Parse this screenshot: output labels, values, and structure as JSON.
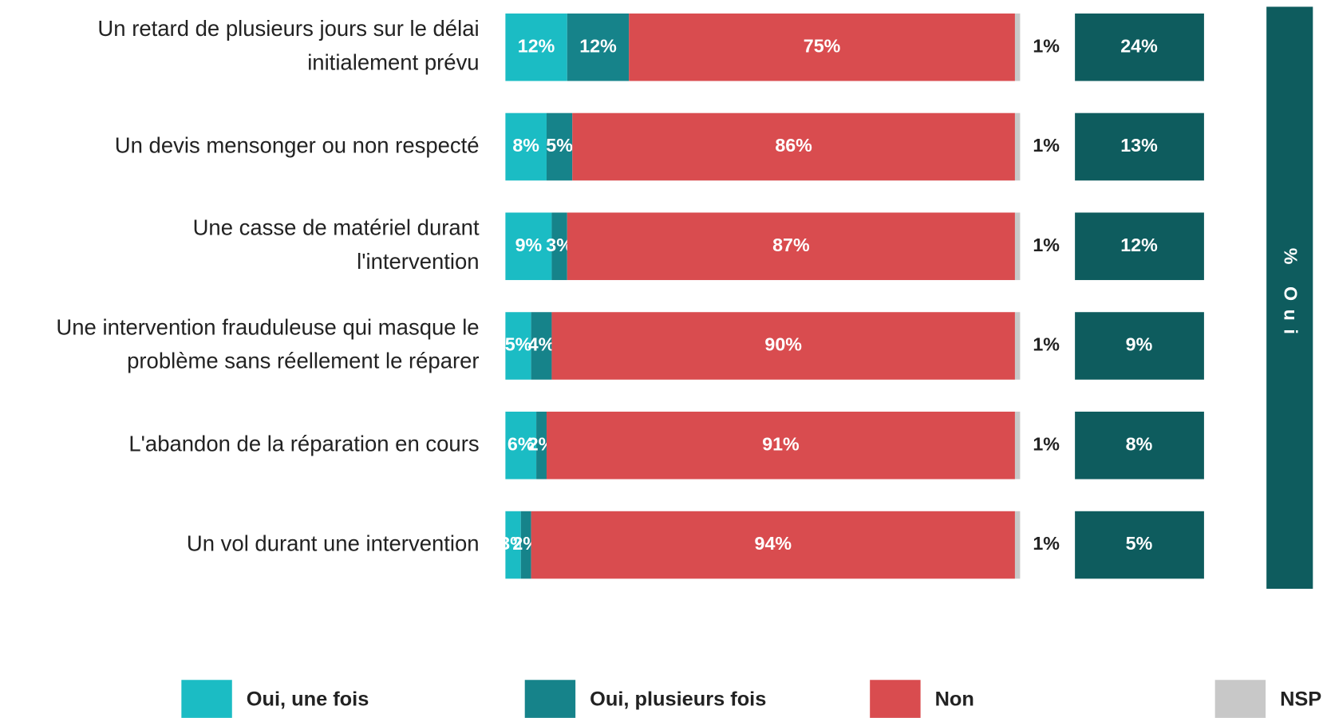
{
  "chart_data": {
    "type": "stacked-bar",
    "orientation": "horizontal",
    "categories": [
      "Un retard de plusieurs jours sur le délai initialement prévu",
      "Un devis mensonger ou non respecté",
      "Une casse de matériel durant l'intervention",
      "Une intervention frauduleuse qui masque le problème sans réellement le réparer",
      "L'abandon de la réparation en cours",
      "Un vol durant une intervention"
    ],
    "xlim": [
      0,
      100
    ],
    "series": [
      {
        "name": "Oui, une fois",
        "color": "#1bbcc4",
        "values": [
          12,
          8,
          9,
          5,
          6,
          3
        ],
        "value_labels": [
          "12%",
          "8%",
          "9%",
          "5%",
          "6%",
          "3%"
        ]
      },
      {
        "name": "Oui, plusieurs fois",
        "color": "#16838a",
        "values": [
          12,
          5,
          3,
          4,
          2,
          2
        ],
        "value_labels": [
          "12%",
          "5%",
          "3%",
          "4%",
          "2%",
          "2%"
        ]
      },
      {
        "name": "Non",
        "color": "#d94c4f",
        "values": [
          75,
          86,
          87,
          90,
          91,
          94
        ],
        "value_labels": [
          "75%",
          "86%",
          "87%",
          "90%",
          "91%",
          "94%"
        ]
      },
      {
        "name": "NSP",
        "color": "#c8c8c8",
        "values": [
          1,
          1,
          1,
          1,
          1,
          1
        ],
        "value_labels": [
          "1%",
          "1%",
          "1%",
          "1%",
          "1%",
          "1%"
        ]
      }
    ],
    "total": {
      "label": "% Oui",
      "color": "#0e5c5e",
      "values": [
        24,
        13,
        12,
        9,
        8,
        5
      ],
      "value_labels": [
        "24%",
        "13%",
        "12%",
        "9%",
        "8%",
        "5%"
      ]
    }
  }
}
